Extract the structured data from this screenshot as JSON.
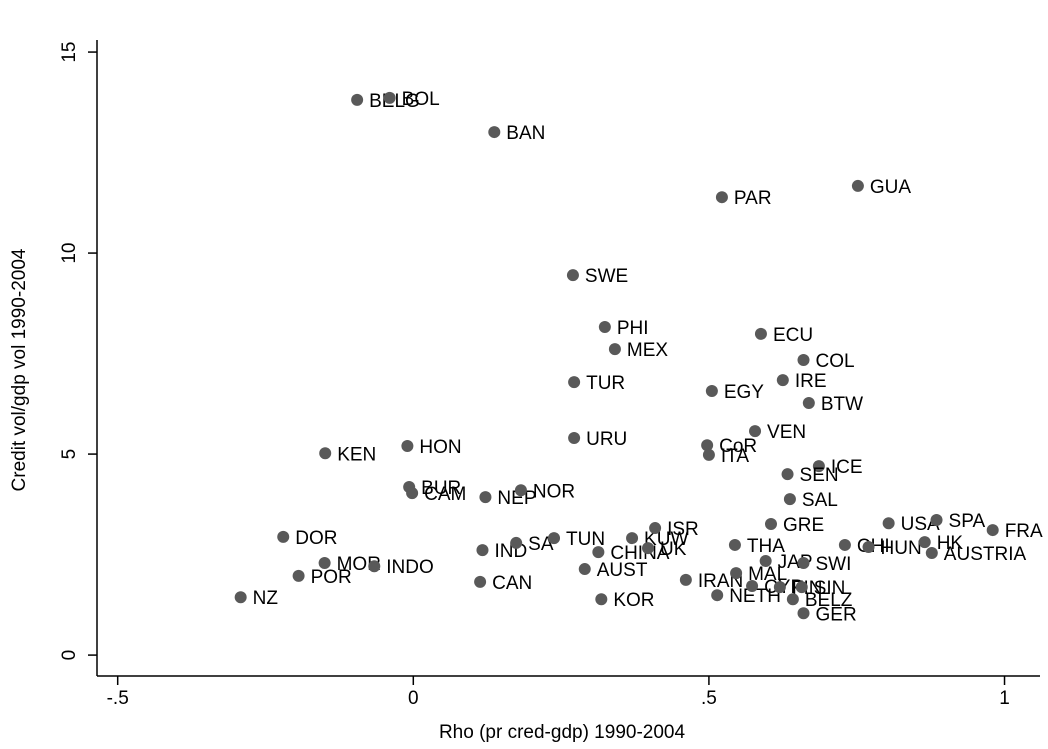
{
  "chart_data": {
    "type": "scatter",
    "x_label": "Rho (pr cred-gdp) 1990-2004",
    "y_label": "Credit vol/gdp vol 1990-2004",
    "color": "#595959",
    "xlim": [
      -0.535,
      1.06
    ],
    "ylim": [
      -0.52,
      15.3
    ],
    "xticks": [
      {
        "value": -0.5,
        "label": "-.5"
      },
      0,
      {
        "value": 0.5,
        "label": ".5"
      },
      1
    ],
    "yticks": [
      0,
      5,
      10,
      15
    ],
    "point_labels": [
      "BELG",
      "BOL",
      "BAN",
      "PAR",
      "GUA",
      "SWE",
      "PHI",
      "MEX",
      "ECU",
      "COL",
      "TUR",
      "EGY",
      "IRE",
      "BTW",
      "KEN",
      "HON",
      "URU",
      "CoR",
      "ITA",
      "VEN",
      "ICE",
      "SEN",
      "SAL",
      "BUR",
      "CAM",
      "NEP",
      "NOR",
      "DOR",
      "MOR",
      "INDO",
      "POR",
      "NZ",
      "IND",
      "SA",
      "TUN",
      "CAN",
      "AUST",
      "CHINA",
      "KUW",
      "ISR",
      "UK",
      "KOR",
      "IRAN",
      "NETH",
      "THA",
      "GRE",
      "JAP",
      "MAL",
      "SWI",
      "CYP",
      "FIN",
      "SIN",
      "BELZ",
      "GER",
      "CHI",
      "HUN",
      "USA",
      "SPA",
      "HK",
      "AUSTRIA",
      "FRA"
    ],
    "x": [
      -0.095,
      -0.04,
      0.137,
      0.522,
      0.752,
      0.27,
      0.324,
      0.341,
      0.588,
      0.66,
      0.272,
      0.505,
      0.625,
      0.669,
      -0.149,
      -0.01,
      0.272,
      0.497,
      0.5,
      0.578,
      0.686,
      0.633,
      0.637,
      -0.007,
      -0.002,
      0.122,
      0.182,
      -0.22,
      -0.15,
      -0.066,
      -0.194,
      -0.292,
      0.117,
      0.174,
      0.238,
      0.113,
      0.29,
      0.313,
      0.37,
      0.409,
      0.397,
      0.318,
      0.461,
      0.514,
      0.544,
      0.605,
      0.596,
      0.546,
      0.66,
      0.573,
      0.62,
      0.657,
      0.642,
      0.66,
      0.73,
      0.77,
      0.804,
      0.885,
      0.865,
      0.877,
      0.98
    ],
    "values": [
      13.81,
      13.86,
      13.01,
      11.39,
      11.67,
      9.45,
      8.16,
      7.61,
      7.99,
      7.34,
      6.79,
      6.57,
      6.84,
      6.27,
      5.02,
      5.2,
      5.4,
      5.22,
      4.98,
      5.57,
      4.7,
      4.5,
      3.88,
      4.18,
      4.03,
      3.93,
      4.1,
      2.94,
      2.29,
      2.21,
      1.97,
      1.44,
      2.61,
      2.79,
      2.91,
      1.82,
      2.14,
      2.56,
      2.91,
      3.16,
      2.66,
      1.39,
      1.87,
      1.49,
      2.74,
      3.26,
      2.34,
      2.04,
      2.29,
      1.72,
      1.69,
      1.69,
      1.39,
      1.04,
      2.74,
      2.69,
      3.28,
      3.36,
      2.81,
      2.54,
      3.11
    ]
  }
}
